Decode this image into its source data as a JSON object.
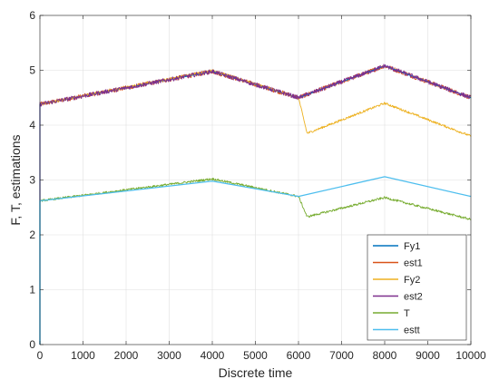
{
  "chart_data": {
    "type": "line",
    "xlabel": "Discrete time",
    "ylabel": "F, T, estimations",
    "xlim": [
      0,
      10000
    ],
    "ylim": [
      0,
      6
    ],
    "xticks": [
      0,
      1000,
      2000,
      3000,
      4000,
      5000,
      6000,
      7000,
      8000,
      9000,
      10000
    ],
    "xtick_labels": [
      "0",
      "1000",
      "2000",
      "3000",
      "4000",
      "5000",
      "6000",
      "7000",
      "8000",
      "9000",
      "10000"
    ],
    "yticks": [
      0,
      1,
      2,
      3,
      4,
      5,
      6
    ],
    "ytick_labels": [
      "0",
      "1",
      "2",
      "3",
      "4",
      "5",
      "6"
    ],
    "grid": true,
    "legend_position": "bottom-right",
    "series": [
      {
        "name": "Fy1",
        "color": "#0072BD",
        "noise": 0.0,
        "x": [
          0,
          4000,
          6000,
          8000,
          10000
        ],
        "y": [
          4.38,
          4.98,
          4.5,
          5.08,
          4.5
        ]
      },
      {
        "name": "est1",
        "color": "#D95319",
        "noise": 0.04,
        "x": [
          0,
          4000,
          6000,
          8000,
          10000
        ],
        "y": [
          4.38,
          4.98,
          4.5,
          5.08,
          4.5
        ]
      },
      {
        "name": "Fy2",
        "color": "#EDB120",
        "noise": 0.02,
        "x": [
          0,
          4000,
          6000,
          6200,
          8000,
          10000
        ],
        "y": [
          4.38,
          5.0,
          4.5,
          3.85,
          4.4,
          3.8
        ]
      },
      {
        "name": "est2",
        "color": "#7E2F8E",
        "noise": 0.04,
        "x": [
          0,
          4000,
          6000,
          8000,
          10000
        ],
        "y": [
          4.38,
          4.98,
          4.5,
          5.08,
          4.5
        ]
      },
      {
        "name": "T",
        "color": "#77AC30",
        "noise": 0.02,
        "x": [
          0,
          4000,
          6000,
          6200,
          8000,
          10000
        ],
        "y": [
          2.62,
          3.02,
          2.7,
          2.33,
          2.68,
          2.28
        ]
      },
      {
        "name": "estt",
        "color": "#4DBEEE",
        "noise": 0.0,
        "x": [
          0,
          4000,
          6000,
          8000,
          10000
        ],
        "y": [
          2.62,
          2.98,
          2.7,
          3.06,
          2.7
        ]
      }
    ]
  }
}
